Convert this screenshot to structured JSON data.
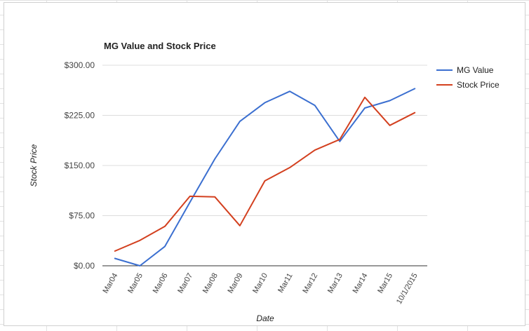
{
  "chart_data": {
    "type": "line",
    "title": "MG Value and Stock Price",
    "xlabel": "Date",
    "ylabel": "Stock Price",
    "categories": [
      "Mar04",
      "Mar05",
      "Mar06",
      "Mar07",
      "Mar08",
      "Mar09",
      "Mar10",
      "Mar11",
      "Mar12",
      "Mar13",
      "Mar14",
      "Mar15",
      "10/1/2015"
    ],
    "ylim": [
      0,
      300
    ],
    "yticks": [
      "$0.00",
      "$75.00",
      "$150.00",
      "$225.00",
      "$300.00"
    ],
    "grid": true,
    "legend": "right",
    "series": [
      {
        "name": "MG Value",
        "color": "#3b6fd0",
        "values": [
          11,
          0,
          29,
          95,
          160,
          216,
          244,
          261,
          240,
          186,
          236,
          247,
          265
        ]
      },
      {
        "name": "Stock Price",
        "color": "#d3401f",
        "values": [
          22,
          38,
          59,
          104,
          103,
          60,
          127,
          147,
          173,
          189,
          252,
          210,
          229
        ]
      }
    ]
  }
}
